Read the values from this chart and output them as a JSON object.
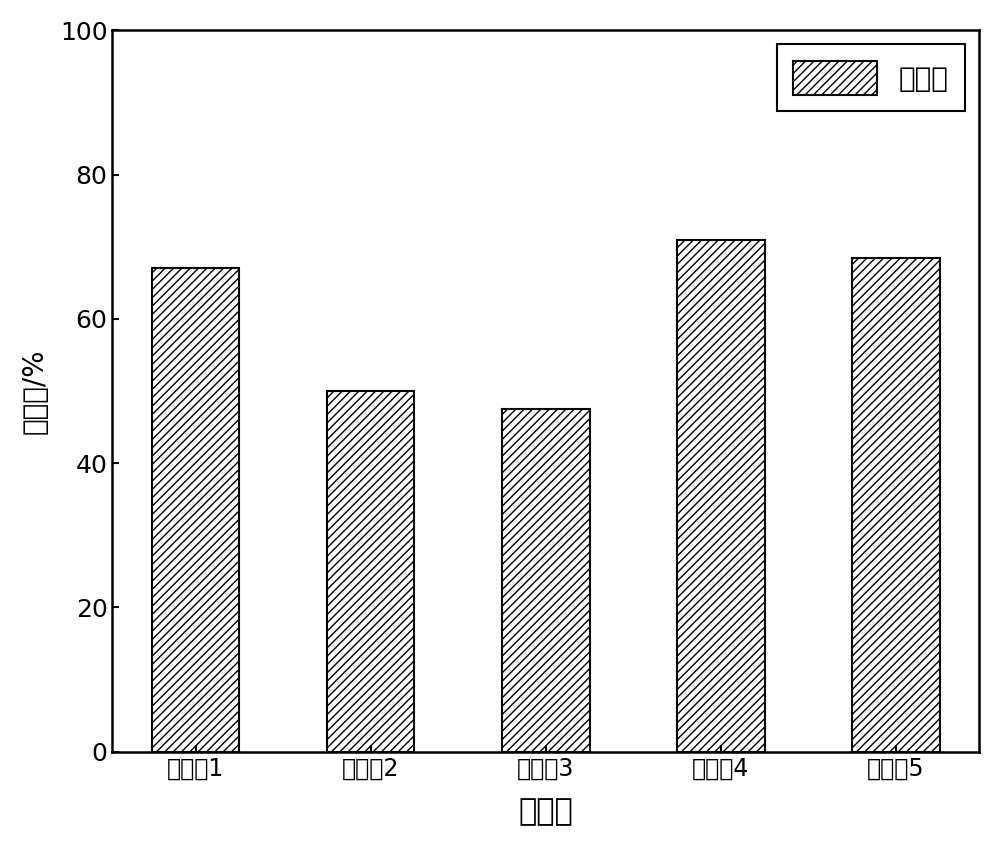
{
  "x_labels": [
    "降粘剩1",
    "降粘剩2",
    "降粘剩3",
    "降粘剩4",
    "降粘剩5"
  ],
  "values": [
    67.0,
    50.0,
    47.5,
    71.0,
    68.5
  ],
  "bar_color": "#ffffff",
  "bar_edgecolor": "#000000",
  "hatch_pattern": "////",
  "xlabel": "降粘副",
  "ylabel": "降粘率/%",
  "ylim": [
    0,
    100
  ],
  "yticks": [
    0,
    20,
    40,
    60,
    80,
    100
  ],
  "legend_label": "降粘率",
  "xlabel_fontsize": 22,
  "ylabel_fontsize": 20,
  "tick_fontsize": 18,
  "legend_fontsize": 20,
  "xtick_fontsize": 17,
  "background_color": "#ffffff",
  "bar_width": 0.5
}
